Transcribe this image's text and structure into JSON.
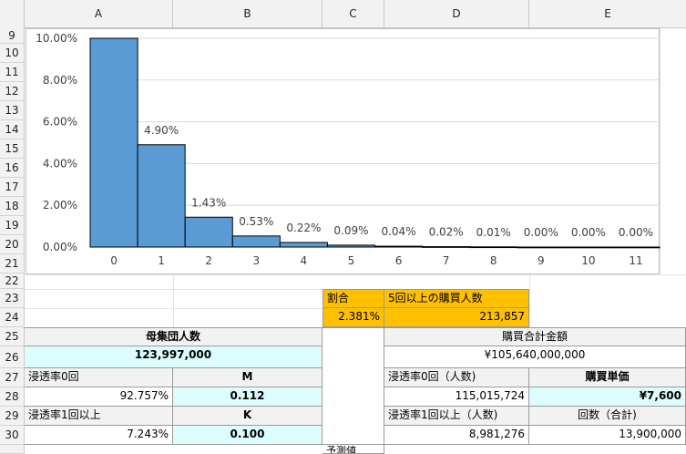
{
  "columns": [
    "A",
    "B",
    "C",
    "D",
    "E"
  ],
  "rows": [
    "9",
    "10",
    "11",
    "12",
    "13",
    "14",
    "15",
    "16",
    "17",
    "18",
    "19",
    "20",
    "21",
    "22",
    "23",
    "24",
    "25",
    "26",
    "27",
    "28",
    "29",
    "30"
  ],
  "chart_data": {
    "type": "bar",
    "categories": [
      "0",
      "1",
      "2",
      "3",
      "4",
      "5",
      "6",
      "7",
      "8",
      "9",
      "10",
      "11"
    ],
    "values": [
      10.0,
      4.9,
      1.43,
      0.53,
      0.22,
      0.09,
      0.04,
      0.02,
      0.01,
      0.0,
      0.0,
      0.0
    ],
    "data_labels": [
      "",
      "4.90%",
      "1.43%",
      "0.53%",
      "0.22%",
      "0.09%",
      "0.04%",
      "0.02%",
      "0.01%",
      "0.00%",
      "0.00%",
      "0.00%"
    ],
    "yticks": [
      "0.00%",
      "2.00%",
      "4.00%",
      "6.00%",
      "8.00%",
      "10.00%"
    ],
    "ylim": [
      0,
      10
    ],
    "bar_color": "#5b9bd5",
    "grid": true
  },
  "table": {
    "ratio_label": "割合",
    "ratio_value": "2.381%",
    "buyers5_label": "5回以上の購買人数",
    "buyers5_value": "213,857",
    "population_label": "母集団人数",
    "population_value": "123,997,000",
    "purchase_total_label": "購買合計金額",
    "purchase_total_value": "¥105,640,000,000",
    "pen0_label": "浸透率0回",
    "m_label": "M",
    "pen0_people_label": "浸透率0回（人数)",
    "unit_price_label": "購買単価",
    "pen0_value": "92.757%",
    "m_value": "0.112",
    "pen0_people_value": "115,015,724",
    "unit_price_value": "¥7,600",
    "pen1_label": "浸透率1回以上",
    "k_label": "K",
    "pen1_people_label": "浸透率1回以上（人数)",
    "count_total_label": "回数（合計)",
    "pen1_value": "7.243%",
    "k_value": "0.100",
    "pen1_people_value": "8,981,276",
    "count_total_value": "13,900,000",
    "forecast_label": "予測値"
  }
}
